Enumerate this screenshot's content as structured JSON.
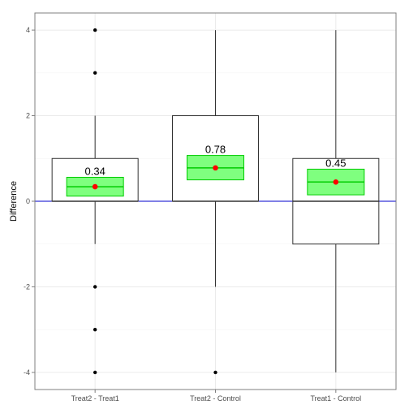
{
  "chart_data": {
    "type": "box",
    "title": "",
    "xlabel": "",
    "ylabel": "Difference",
    "ylim": [
      -4.4,
      4.4
    ],
    "yticks": [
      -4,
      -2,
      0,
      2,
      4
    ],
    "grid": true,
    "reference_line": {
      "y": 0,
      "color": "#0000cc"
    },
    "categories": [
      "Treat2 - Treat1",
      "Treat2 - Control",
      "Treat1 - Control"
    ],
    "boxes": [
      {
        "category": "Treat2 - Treat1",
        "whisker_low": -1,
        "q1": 0,
        "median": 0,
        "q3": 1,
        "whisker_high": 2,
        "outliers": [
          4,
          3,
          -2,
          -3,
          -4
        ]
      },
      {
        "category": "Treat2 - Control",
        "whisker_low": -2,
        "q1": 0,
        "median": 0,
        "q3": 2,
        "whisker_high": 4,
        "outliers": [
          -4
        ]
      },
      {
        "category": "Treat1 - Control",
        "whisker_low": -4,
        "q1": -1,
        "median": 0,
        "q3": 1,
        "whisker_high": 4,
        "outliers": []
      }
    ],
    "mean_ci": [
      {
        "category": "Treat2 - Treat1",
        "mean": 0.34,
        "lower": 0.12,
        "upper": 0.56,
        "label": "0.34"
      },
      {
        "category": "Treat2 - Control",
        "mean": 0.78,
        "lower": 0.5,
        "upper": 1.07,
        "label": "0.78"
      },
      {
        "category": "Treat1 - Control",
        "mean": 0.45,
        "lower": 0.15,
        "upper": 0.75,
        "label": "0.45"
      }
    ],
    "colors": {
      "ci_fill": "#00ff00",
      "ci_stroke": "#00cc00",
      "mean_point": "#ff0000",
      "box_stroke": "#333333",
      "outlier": "#000000",
      "grid": "#ebebeb",
      "panel_border": "#7f7f7f"
    }
  }
}
